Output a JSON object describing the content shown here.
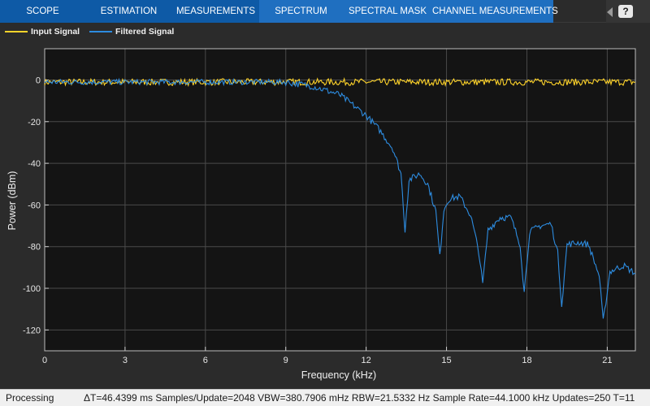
{
  "tabs": [
    {
      "label": "SCOPE"
    },
    {
      "label": "ESTIMATION"
    },
    {
      "label": "MEASUREMENTS"
    },
    {
      "label": "SPECTRUM"
    },
    {
      "label": "SPECTRAL MASK"
    },
    {
      "label": "CHANNEL MEASUREMENTS"
    }
  ],
  "help": {
    "icon": "help-icon",
    "glyph": "?"
  },
  "legend": [
    {
      "label": "Input Signal",
      "color": "#ffd42a"
    },
    {
      "label": "Filtered Signal",
      "color": "#2d8ce0"
    }
  ],
  "chart_data": {
    "type": "line",
    "xlabel": "Frequency (kHz)",
    "ylabel": "Power (dBm)",
    "xlim": [
      0,
      22.05
    ],
    "ylim": [
      -130,
      15
    ],
    "xticks": [
      0,
      3,
      6,
      9,
      12,
      15,
      18,
      21
    ],
    "yticks": [
      0,
      -20,
      -40,
      -60,
      -80,
      -100,
      -120
    ],
    "grid": true,
    "legend_placement": "top-left",
    "background": "#141414",
    "series": [
      {
        "name": "Input Signal",
        "color": "#ffd42a",
        "x": [
          0,
          2,
          4,
          6,
          8,
          10,
          12,
          14,
          16,
          18,
          20,
          22.05
        ],
        "y": [
          -1,
          -1,
          -1,
          -1,
          -1,
          -1,
          -1,
          -1,
          -1,
          -1,
          -1,
          -1
        ]
      },
      {
        "name": "Filtered Signal",
        "color": "#2d8ce0",
        "x": [
          0,
          2,
          4,
          6,
          8,
          9,
          9.5,
          10,
          10.5,
          11,
          11.5,
          12,
          12.5,
          13,
          13.3,
          13.45,
          13.6,
          14,
          14.3,
          14.6,
          14.75,
          14.9,
          15.1,
          15.5,
          15.9,
          16.2,
          16.35,
          16.55,
          17,
          17.4,
          17.75,
          17.9,
          18.1,
          18.5,
          18.9,
          19.15,
          19.3,
          19.5,
          19.95,
          20.3,
          20.7,
          20.85,
          21.1,
          21.6,
          22.05
        ],
        "y": [
          -1,
          -1,
          -1,
          -1,
          -1,
          -1,
          -2,
          -3,
          -5,
          -7,
          -12,
          -17,
          -24,
          -33,
          -45,
          -72,
          -48,
          -45,
          -50,
          -63,
          -85,
          -62,
          -57,
          -56,
          -65,
          -82,
          -98,
          -72,
          -66,
          -66,
          -79,
          -102,
          -73,
          -70,
          -69,
          -83,
          -108,
          -79,
          -78,
          -79,
          -94,
          -116,
          -92,
          -89,
          -93
        ]
      }
    ]
  },
  "status": {
    "left": "Processing",
    "right": "ΔT=46.4399 ms  Samples/Update=2048  VBW=380.7906 mHz  RBW=21.5332 Hz  Sample Rate=44.1000 kHz  Updates=250  T=11"
  }
}
